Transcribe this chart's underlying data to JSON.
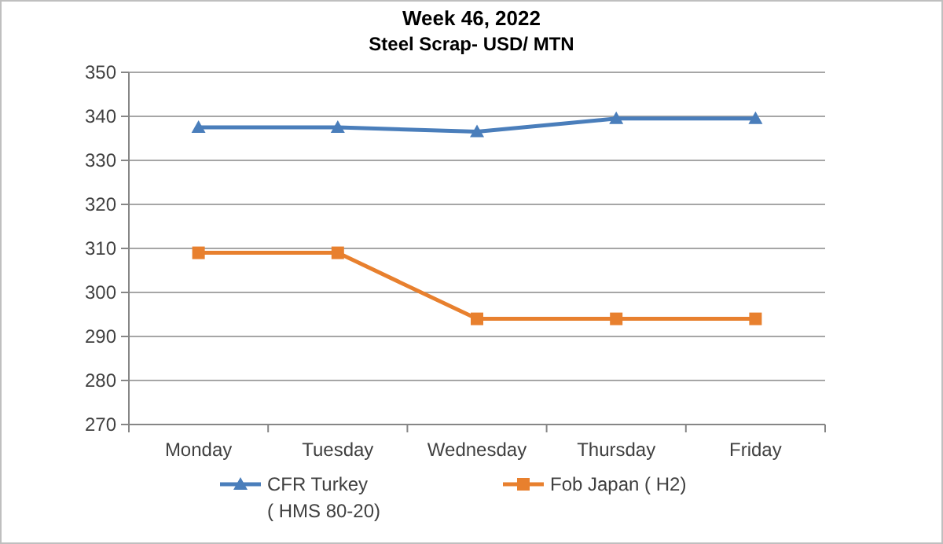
{
  "chart_data": {
    "type": "line",
    "title": "Week 46, 2022",
    "subtitle": "Steel Scrap- USD/ MTN",
    "categories": [
      "Monday",
      "Tuesday",
      "Wednesday",
      "Thursday",
      "Friday"
    ],
    "series": [
      {
        "name": "CFR Turkey\n( HMS 80-20)",
        "color": "#4a7ebb",
        "marker": "triangle",
        "values": [
          337.5,
          337.5,
          336.5,
          339.5,
          339.5
        ]
      },
      {
        "name": "Fob Japan ( H2)",
        "color": "#e8802e",
        "marker": "square",
        "values": [
          309,
          309,
          294,
          294,
          294
        ]
      }
    ],
    "ylim": [
      270,
      350
    ],
    "yticks": [
      270,
      280,
      290,
      300,
      310,
      320,
      330,
      340,
      350
    ],
    "grid": "y",
    "legend": "bottom",
    "line_style": "solid"
  }
}
